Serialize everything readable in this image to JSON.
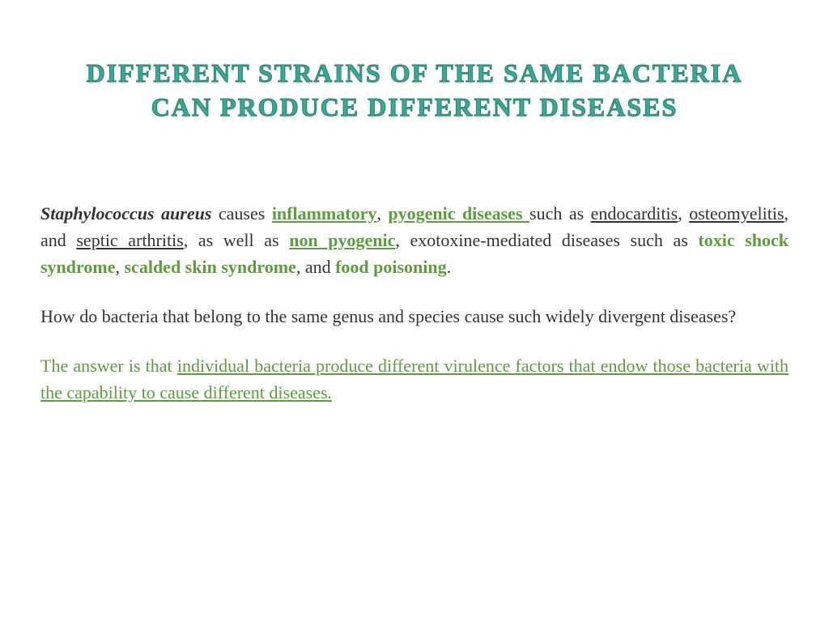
{
  "colors": {
    "title_color": "#3ba896",
    "title_stroke": "#2a8070",
    "body_color": "#333333",
    "green_accent": "#5a9e3d",
    "background": "#ffffff"
  },
  "typography": {
    "font_family": "Comic Sans MS",
    "title_fontsize": 32,
    "body_fontsize": 22,
    "title_letter_spacing": 2
  },
  "title": {
    "line1": "Different strains of the same bacteria",
    "line2": "can produce different diseases"
  },
  "para1": {
    "t1": "Staphylococcus aureus",
    "t2": " causes ",
    "t3": "inflammatory",
    "t4": ", ",
    "t5": "pyogenic diseases ",
    "t6": "such as ",
    "t7": "endocarditis",
    "t8": ", ",
    "t9": "osteomyelitis",
    "t10": ", and ",
    "t11": "septic arthritis",
    "t12": ", as well as ",
    "t13": "non pyogenic",
    "t14": ", exotoxine-mediated diseases such as ",
    "t15": "toxic shock syndrome",
    "t16": ", ",
    "t17": "scalded skin syndrome",
    "t18": ", and ",
    "t19": "food poisoning",
    "t20": "."
  },
  "para2": {
    "text": " How do bacteria that belong to the same genus and species cause such widely divergent diseases?"
  },
  "para3": {
    "t1": "The answer is that ",
    "t2": "individual bacteria produce different virulence factors that endow those bacteria with the capability to cause different diseases."
  }
}
